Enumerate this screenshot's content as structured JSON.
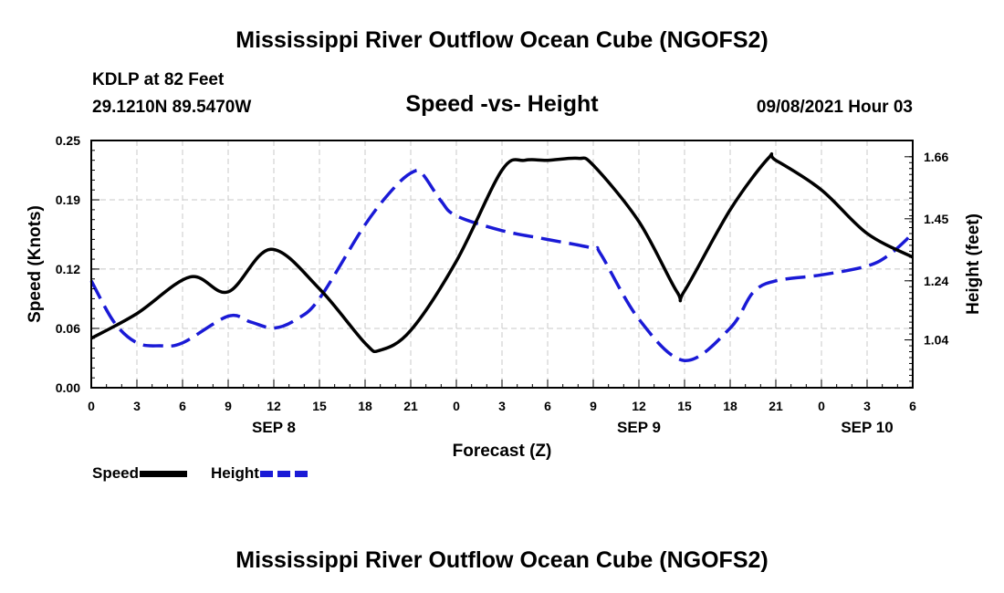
{
  "header": {
    "title": "Mississippi River Outflow Ocean Cube (NGOFS2)",
    "station": "KDLP at 82 Feet",
    "coords": "29.1210N  89.5470W",
    "subtitle": "Speed -vs- Height",
    "datetime": "09/08/2021 Hour 03"
  },
  "footer": {
    "title": "Mississippi River Outflow Ocean Cube (NGOFS2)"
  },
  "legend": {
    "speed_label": "Speed",
    "height_label": "Height"
  },
  "colors": {
    "speed": "#000000",
    "height": "#1a1ad6",
    "grid": "#c8c8c8"
  },
  "chart_data": {
    "type": "line",
    "title": "Speed -vs- Height",
    "xlabel": "Forecast (Z)",
    "ylabel": "Speed (Knots)",
    "y2label": "Height (feet)",
    "x_range": [
      0,
      54
    ],
    "ylim": [
      0,
      0.25
    ],
    "y2lim": [
      0.878,
      1.715
    ],
    "x_ticks": [
      0,
      3,
      6,
      9,
      12,
      15,
      18,
      21,
      24,
      27,
      30,
      33,
      36,
      39,
      42,
      45,
      48,
      51,
      54
    ],
    "x_tick_labels": [
      "0",
      "3",
      "6",
      "9",
      "12",
      "15",
      "18",
      "21",
      "0",
      "3",
      "6",
      "9",
      "12",
      "15",
      "18",
      "21",
      "0",
      "3",
      "6"
    ],
    "date_labels": [
      {
        "label": "SEP 8",
        "x": 12
      },
      {
        "label": "SEP 9",
        "x": 36
      },
      {
        "label": "SEP 10",
        "x": 51
      }
    ],
    "y_ticks": [
      0,
      0.06,
      0.12,
      0.19,
      0.25
    ],
    "y_tick_labels": [
      "0.00",
      "0.06",
      "0.12",
      "0.19",
      "0.25"
    ],
    "y2_ticks": [
      1.04,
      1.24,
      1.45,
      1.66
    ],
    "y2_tick_labels": [
      "1.04",
      "1.24",
      "1.45",
      "1.66"
    ],
    "grid": true,
    "series": [
      {
        "name": "Speed",
        "axis": "left",
        "style": "solid",
        "x": [
          0,
          3,
          6.5,
          9,
          11.8,
          15,
          18,
          19,
          21,
          24,
          27,
          28.5,
          30,
          32,
          33,
          36,
          38.5,
          39,
          42,
          44.5,
          45,
          48,
          51,
          54
        ],
        "y": [
          0.05,
          0.075,
          0.112,
          0.097,
          0.14,
          0.1,
          0.045,
          0.038,
          0.058,
          0.128,
          0.22,
          0.23,
          0.23,
          0.232,
          0.225,
          0.168,
          0.097,
          0.098,
          0.18,
          0.232,
          0.23,
          0.2,
          0.156,
          0.132
        ]
      },
      {
        "name": "Height",
        "axis": "right",
        "style": "dashed",
        "x": [
          0,
          1.5,
          3,
          4.5,
          6,
          9,
          10.5,
          12,
          13.5,
          15,
          18,
          20,
          21.2,
          21.8,
          23,
          24,
          27,
          30,
          33,
          33.5,
          36,
          39,
          42,
          43.5,
          45,
          48,
          51,
          52.5,
          54
        ],
        "y": [
          1.24,
          1.1,
          1.03,
          1.02,
          1.03,
          1.12,
          1.1,
          1.08,
          1.11,
          1.18,
          1.43,
          1.56,
          1.61,
          1.6,
          1.51,
          1.46,
          1.41,
          1.38,
          1.35,
          1.33,
          1.11,
          0.97,
          1.08,
          1.2,
          1.24,
          1.26,
          1.29,
          1.33,
          1.4
        ]
      }
    ]
  }
}
